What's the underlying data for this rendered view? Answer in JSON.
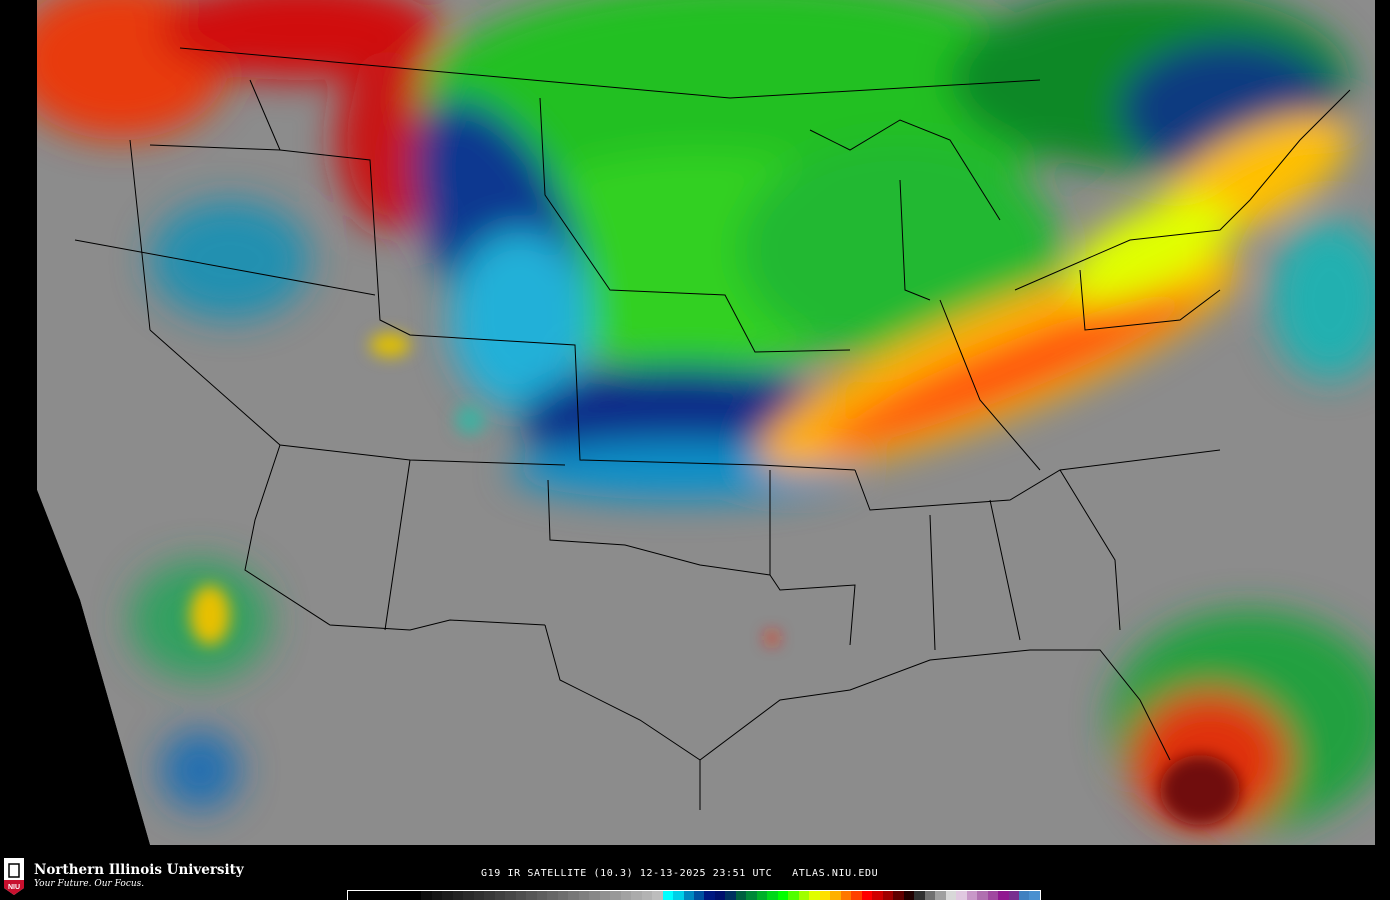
{
  "product": {
    "caption": "G19 IR SATELLITE (10.3) 12-13-2025 23:51 UTC   ATLAS.NIU.EDU",
    "satellite": "G19",
    "channel": "IR SATELLITE (10.3)",
    "date": "12-13-2025",
    "time": "23:51 UTC",
    "site": "ATLAS.NIU.EDU"
  },
  "branding": {
    "university": "Northern Illinois University",
    "tagline": "Your Future. Our Focus.",
    "seal_text": "NIU",
    "seal_color": "#c8102e"
  },
  "map": {
    "region": "Continental United States",
    "background_color": "#000000",
    "boundary_color": "#000000"
  },
  "colorbar": {
    "colors": [
      "#000000",
      "#000000",
      "#000000",
      "#000000",
      "#000000",
      "#000000",
      "#000000",
      "#0d0d0d",
      "#151515",
      "#1c1c1c",
      "#232323",
      "#2a2a2a",
      "#313131",
      "#383838",
      "#404040",
      "#474747",
      "#4f4f4f",
      "#575757",
      "#5f5f5f",
      "#676767",
      "#6f6f6f",
      "#787878",
      "#808080",
      "#888888",
      "#919191",
      "#999999",
      "#a2a2a2",
      "#ababab",
      "#b3b3b3",
      "#bdbdbd",
      "#00ffff",
      "#00d0e8",
      "#0088c0",
      "#0050a0",
      "#001880",
      "#00106c",
      "#003060",
      "#006040",
      "#008838",
      "#00b028",
      "#00d818",
      "#00ff00",
      "#50ff00",
      "#a0ff00",
      "#e0ff00",
      "#ffe000",
      "#ffb000",
      "#ff7800",
      "#ff4000",
      "#ff0000",
      "#d00000",
      "#a00000",
      "#600000",
      "#200000",
      "#303030",
      "#707070",
      "#a0a0a0",
      "#d8d8d8",
      "#e0c8e0",
      "#c898c8",
      "#b070b0",
      "#a048a0",
      "#901890",
      "#783090",
      "#4080c0",
      "#4a90d0"
    ]
  }
}
